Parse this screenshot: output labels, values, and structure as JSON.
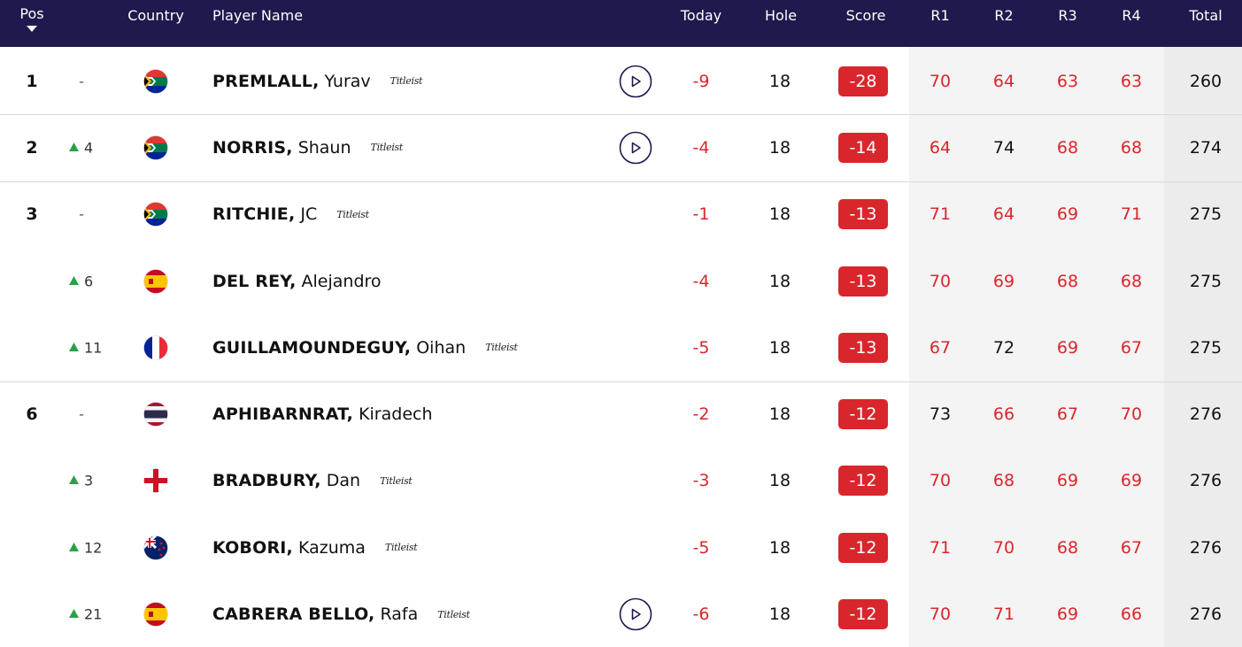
{
  "header": {
    "columns": {
      "pos": "Pos",
      "country": "Country",
      "player": "Player Name",
      "today": "Today",
      "hole": "Hole",
      "score": "Score",
      "r1": "R1",
      "r2": "R2",
      "r3": "R3",
      "r4": "R4",
      "total": "Total"
    }
  },
  "style": {
    "header_bg": "#1e1a4d",
    "under": "#d9262c",
    "over": "#111111",
    "up": "#2e9e4a"
  },
  "rows": [
    {
      "pos": 1,
      "move": "-",
      "flag": "za",
      "surname": "PREMLALL,",
      "first": "Yurav",
      "brand": "Titleist",
      "video": true,
      "today": -9,
      "hole": 18,
      "score": -28,
      "rounds": [
        70,
        64,
        63,
        63
      ],
      "round_colors": [
        "under",
        "under",
        "under",
        "under"
      ],
      "total": 260
    },
    {
      "pos": 2,
      "move": 4,
      "move_dir": "up",
      "flag": "za",
      "surname": "NORRIS,",
      "first": "Shaun",
      "brand": "Titleist",
      "video": true,
      "today": -4,
      "hole": 18,
      "score": -14,
      "rounds": [
        64,
        74,
        68,
        68
      ],
      "round_colors": [
        "under",
        "over",
        "under",
        "under"
      ],
      "total": 274
    },
    {
      "pos": 3,
      "move": "-",
      "flag": "za",
      "surname": "RITCHIE,",
      "first": "JC",
      "brand": "Titleist",
      "today": -1,
      "hole": 18,
      "score": -13,
      "rounds": [
        71,
        64,
        69,
        71
      ],
      "round_colors": [
        "under",
        "under",
        "under",
        "under"
      ],
      "total": 275
    },
    {
      "move": 6,
      "move_dir": "up",
      "flag": "es",
      "surname": "DEL REY,",
      "first": "Alejandro",
      "today": -4,
      "hole": 18,
      "score": -13,
      "rounds": [
        70,
        69,
        68,
        68
      ],
      "round_colors": [
        "under",
        "under",
        "under",
        "under"
      ],
      "total": 275
    },
    {
      "move": 11,
      "move_dir": "up",
      "flag": "fr",
      "surname": "GUILLAMOUNDEGUY,",
      "first": "Oihan",
      "brand": "Titleist",
      "today": -5,
      "hole": 18,
      "score": -13,
      "rounds": [
        67,
        72,
        69,
        67
      ],
      "round_colors": [
        "under",
        "over",
        "under",
        "under"
      ],
      "total": 275
    },
    {
      "pos": 6,
      "move": "-",
      "flag": "th",
      "surname": "APHIBARNRAT,",
      "first": "Kiradech",
      "today": -2,
      "hole": 18,
      "score": -12,
      "rounds": [
        73,
        66,
        67,
        70
      ],
      "round_colors": [
        "over",
        "under",
        "under",
        "under"
      ],
      "total": 276
    },
    {
      "move": 3,
      "move_dir": "up",
      "flag": "eng",
      "surname": "BRADBURY,",
      "first": "Dan",
      "brand": "Titleist",
      "today": -3,
      "hole": 18,
      "score": -12,
      "rounds": [
        70,
        68,
        69,
        69
      ],
      "round_colors": [
        "under",
        "under",
        "under",
        "under"
      ],
      "total": 276
    },
    {
      "move": 12,
      "move_dir": "up",
      "flag": "nz",
      "surname": "KOBORI,",
      "first": "Kazuma",
      "brand": "Titleist",
      "today": -5,
      "hole": 18,
      "score": -12,
      "rounds": [
        71,
        70,
        68,
        67
      ],
      "round_colors": [
        "under",
        "under",
        "under",
        "under"
      ],
      "total": 276
    },
    {
      "move": 21,
      "move_dir": "up",
      "flag": "es",
      "surname": "CABRERA BELLO,",
      "first": "Rafa",
      "brand": "Titleist",
      "video": true,
      "today": -6,
      "hole": 18,
      "score": -12,
      "rounds": [
        70,
        71,
        69,
        66
      ],
      "round_colors": [
        "under",
        "under",
        "under",
        "under"
      ],
      "total": 276
    }
  ]
}
